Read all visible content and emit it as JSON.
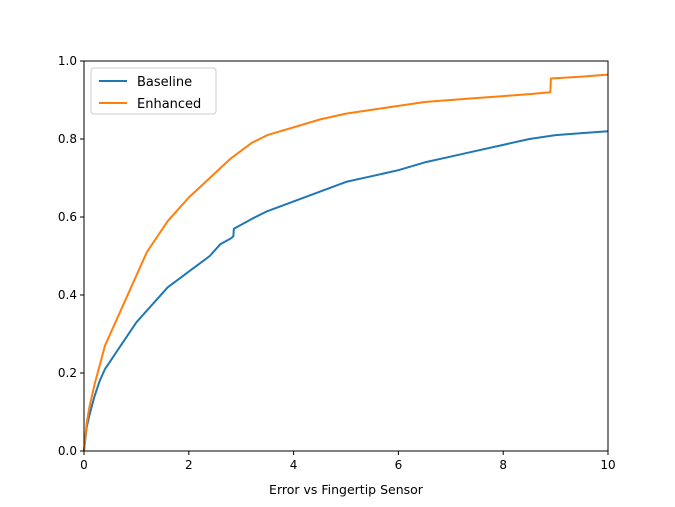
{
  "chart_data": {
    "type": "line",
    "title": "",
    "xlabel": "Error vs Fingertip Sensor",
    "ylabel": "",
    "xlim": [
      0,
      10
    ],
    "ylim": [
      0,
      1.0
    ],
    "xticks": [
      0,
      2,
      4,
      6,
      8,
      10
    ],
    "yticks": [
      0.0,
      0.2,
      0.4,
      0.6,
      0.8,
      1.0
    ],
    "xtick_labels": [
      "0",
      "2",
      "4",
      "6",
      "8",
      "10"
    ],
    "ytick_labels": [
      "0.0",
      "0.2",
      "0.4",
      "0.6",
      "0.8",
      "1.0"
    ],
    "grid": false,
    "legend_position": "top-left",
    "series": [
      {
        "name": "Baseline",
        "color": "#1f77b4",
        "points": [
          [
            0.0,
            0.0
          ],
          [
            0.05,
            0.06
          ],
          [
            0.1,
            0.09
          ],
          [
            0.2,
            0.14
          ],
          [
            0.3,
            0.18
          ],
          [
            0.4,
            0.21
          ],
          [
            0.5,
            0.23
          ],
          [
            0.6,
            0.25
          ],
          [
            0.7,
            0.27
          ],
          [
            0.8,
            0.29
          ],
          [
            0.9,
            0.31
          ],
          [
            1.0,
            0.33
          ],
          [
            1.2,
            0.36
          ],
          [
            1.4,
            0.39
          ],
          [
            1.6,
            0.42
          ],
          [
            1.8,
            0.44
          ],
          [
            2.0,
            0.46
          ],
          [
            2.2,
            0.48
          ],
          [
            2.4,
            0.5
          ],
          [
            2.6,
            0.53
          ],
          [
            2.8,
            0.545
          ],
          [
            2.85,
            0.55
          ],
          [
            2.86,
            0.57
          ],
          [
            3.0,
            0.58
          ],
          [
            3.2,
            0.595
          ],
          [
            3.5,
            0.615
          ],
          [
            4.0,
            0.64
          ],
          [
            4.5,
            0.665
          ],
          [
            5.0,
            0.69
          ],
          [
            5.5,
            0.705
          ],
          [
            6.0,
            0.72
          ],
          [
            6.5,
            0.74
          ],
          [
            7.0,
            0.755
          ],
          [
            7.5,
            0.77
          ],
          [
            8.0,
            0.785
          ],
          [
            8.5,
            0.8
          ],
          [
            9.0,
            0.81
          ],
          [
            9.5,
            0.815
          ],
          [
            10.0,
            0.82
          ]
        ]
      },
      {
        "name": "Enhanced",
        "color": "#ff7f0e",
        "points": [
          [
            0.0,
            0.0
          ],
          [
            0.05,
            0.07
          ],
          [
            0.1,
            0.11
          ],
          [
            0.2,
            0.17
          ],
          [
            0.3,
            0.22
          ],
          [
            0.4,
            0.27
          ],
          [
            0.5,
            0.3
          ],
          [
            0.6,
            0.33
          ],
          [
            0.7,
            0.36
          ],
          [
            0.8,
            0.39
          ],
          [
            0.9,
            0.42
          ],
          [
            1.0,
            0.45
          ],
          [
            1.2,
            0.51
          ],
          [
            1.4,
            0.55
          ],
          [
            1.6,
            0.59
          ],
          [
            1.8,
            0.62
          ],
          [
            2.0,
            0.65
          ],
          [
            2.2,
            0.675
          ],
          [
            2.4,
            0.7
          ],
          [
            2.6,
            0.725
          ],
          [
            2.8,
            0.75
          ],
          [
            3.0,
            0.77
          ],
          [
            3.2,
            0.79
          ],
          [
            3.5,
            0.81
          ],
          [
            4.0,
            0.83
          ],
          [
            4.5,
            0.85
          ],
          [
            5.0,
            0.865
          ],
          [
            5.5,
            0.875
          ],
          [
            6.0,
            0.885
          ],
          [
            6.5,
            0.895
          ],
          [
            7.0,
            0.9
          ],
          [
            7.5,
            0.905
          ],
          [
            8.0,
            0.91
          ],
          [
            8.5,
            0.915
          ],
          [
            8.9,
            0.92
          ],
          [
            8.91,
            0.955
          ],
          [
            9.5,
            0.96
          ],
          [
            10.0,
            0.965
          ]
        ]
      }
    ]
  }
}
